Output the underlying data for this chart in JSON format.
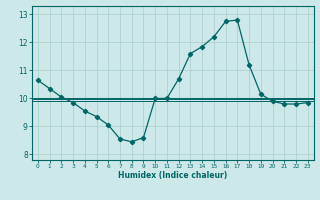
{
  "xlabel": "Humidex (Indice chaleur)",
  "ylabel": "",
  "bg_color": "#cce8e8",
  "line_color": "#006666",
  "grid_color": "#aacccc",
  "xticks": [
    0,
    1,
    2,
    3,
    4,
    5,
    6,
    7,
    8,
    9,
    10,
    11,
    12,
    13,
    14,
    15,
    16,
    17,
    18,
    19,
    20,
    21,
    22,
    23
  ],
  "yticks": [
    8,
    9,
    10,
    11,
    12,
    13
  ],
  "ylim": [
    7.8,
    13.3
  ],
  "xlim": [
    -0.5,
    23.5
  ],
  "curve1_x": [
    0,
    1,
    2,
    3,
    4,
    5,
    6,
    7,
    8,
    9,
    10,
    11,
    12,
    13,
    14,
    15,
    16,
    17,
    18,
    19,
    20,
    21,
    22,
    23
  ],
  "curve1_y": [
    10.65,
    10.35,
    10.05,
    9.85,
    9.55,
    9.35,
    9.05,
    8.55,
    8.45,
    8.6,
    10.0,
    10.0,
    10.7,
    11.6,
    11.85,
    12.2,
    12.75,
    12.8,
    11.2,
    10.15,
    9.9,
    9.8,
    9.8,
    9.85
  ],
  "hline1_y": 10.03,
  "hline2_y": 9.97,
  "hline3_y": 9.9,
  "marker_size": 2.2,
  "line_width": 0.9
}
